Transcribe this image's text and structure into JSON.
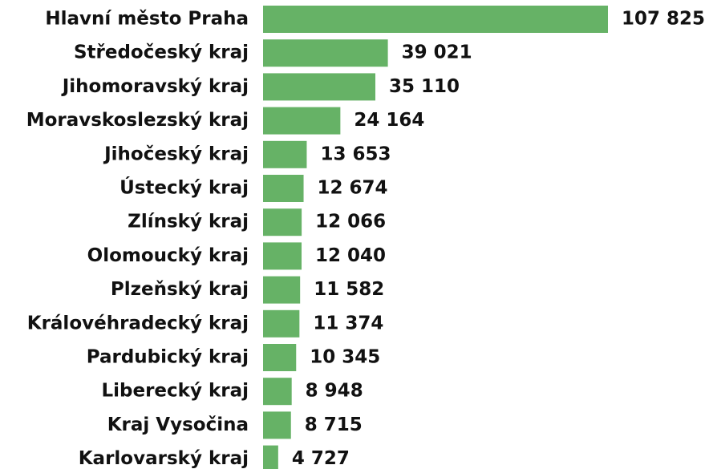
{
  "chart_data": {
    "type": "bar",
    "orientation": "horizontal",
    "categories": [
      "Hlavní město Praha",
      "Středočeský kraj",
      "Jihomoravský kraj",
      "Moravskoslezský kraj",
      "Jihočeský kraj",
      "Ústecký kraj",
      "Zlínský kraj",
      "Olomoucký kraj",
      "Plzeňský kraj",
      "Královéhradecký kraj",
      "Pardubický kraj",
      "Liberecký kraj",
      "Kraj Vysočina",
      "Karlovarský kraj"
    ],
    "values": [
      107825,
      39021,
      35110,
      24164,
      13653,
      12674,
      12066,
      12040,
      11582,
      11374,
      10345,
      8948,
      8715,
      4727
    ],
    "value_labels": [
      "107 825",
      "39 021",
      "35 110",
      "24 164",
      "13 653",
      "12 674",
      "12 066",
      "12 040",
      "11 582",
      "11 374",
      "10 345",
      "8 948",
      "8 715",
      "4 727"
    ],
    "color": "#66b266"
  }
}
